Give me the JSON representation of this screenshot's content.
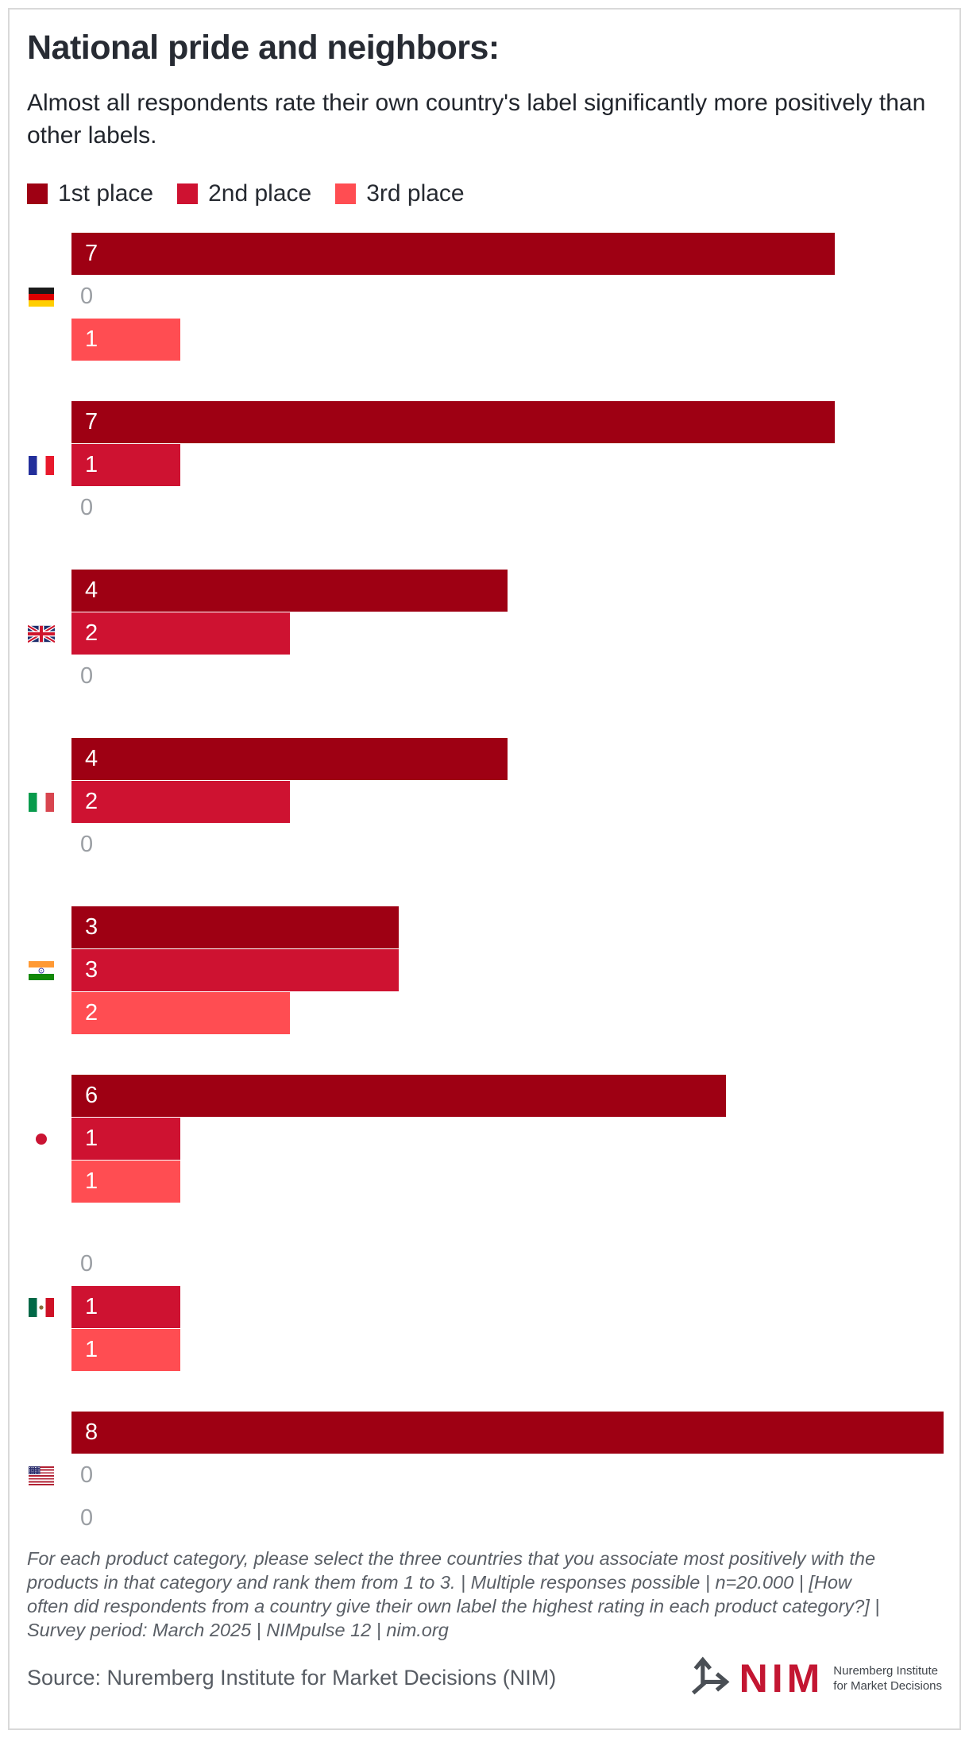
{
  "header": {
    "title": "National pride and neighbors:",
    "subtitle": "Almost all respondents rate their own country's label significantly more positively than other labels."
  },
  "legend": [
    {
      "label": "1st place",
      "color": "#9e0013"
    },
    {
      "label": "2nd place",
      "color": "#ce1231"
    },
    {
      "label": "3rd place",
      "color": "#ff4d52"
    }
  ],
  "chart_data": {
    "type": "bar",
    "orientation": "horizontal",
    "title": "National pride and neighbors:",
    "categories": [
      "Germany",
      "France",
      "United Kingdom",
      "Italy",
      "India",
      "Japan",
      "Mexico",
      "United States"
    ],
    "flags": [
      "germany",
      "france",
      "uk",
      "italy",
      "india",
      "japan",
      "mexico",
      "usa"
    ],
    "series": [
      {
        "name": "1st place",
        "color": "#9e0013",
        "values": [
          7,
          7,
          4,
          4,
          3,
          6,
          0,
          8
        ]
      },
      {
        "name": "2nd place",
        "color": "#ce1231",
        "values": [
          0,
          1,
          2,
          2,
          3,
          1,
          1,
          0
        ]
      },
      {
        "name": "3rd place",
        "color": "#ff4d52",
        "values": [
          1,
          0,
          0,
          0,
          2,
          1,
          1,
          0
        ]
      }
    ],
    "xlim": [
      0,
      8
    ],
    "grid": false,
    "legend_position": "top",
    "value_labels": "inside-start",
    "zero_label_color": "#9b9fa4"
  },
  "footnote": "For each product category, please select the three countries that you associate most positively with the products in that category and rank them from 1 to 3. | Multiple responses possible | n=20.000 | [How often did respondents from a country give their own label the highest rating in each product category?] | Survey period: March 2025 | NIMpulse 12 | nim.org",
  "source": "Source: Nuremberg Institute for Market Decisions (NIM)",
  "logo": {
    "name": "NIM",
    "line1": "Nuremberg Institute",
    "line2": "for Market Decisions",
    "brand_color": "#c31632"
  }
}
